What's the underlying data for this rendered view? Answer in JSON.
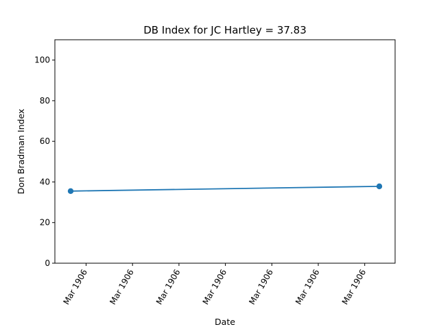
{
  "chart_data": {
    "type": "line",
    "title": "DB Index for JC Hartley = 37.83",
    "xlabel": "Date",
    "ylabel": "Don Bradman Index",
    "ylim": [
      0,
      110
    ],
    "yticks": [
      0,
      20,
      40,
      60,
      80,
      100
    ],
    "xtick_labels": [
      "Mar 1906",
      "Mar 1906",
      "Mar 1906",
      "Mar 1906",
      "Mar 1906",
      "Mar 1906",
      "Mar 1906"
    ],
    "series": [
      {
        "color": "#1f77b4",
        "points": [
          {
            "x": "Mar 1906",
            "y": 35.5
          },
          {
            "x": "Mar 1906",
            "y": 37.83
          }
        ]
      }
    ],
    "grid": false
  }
}
